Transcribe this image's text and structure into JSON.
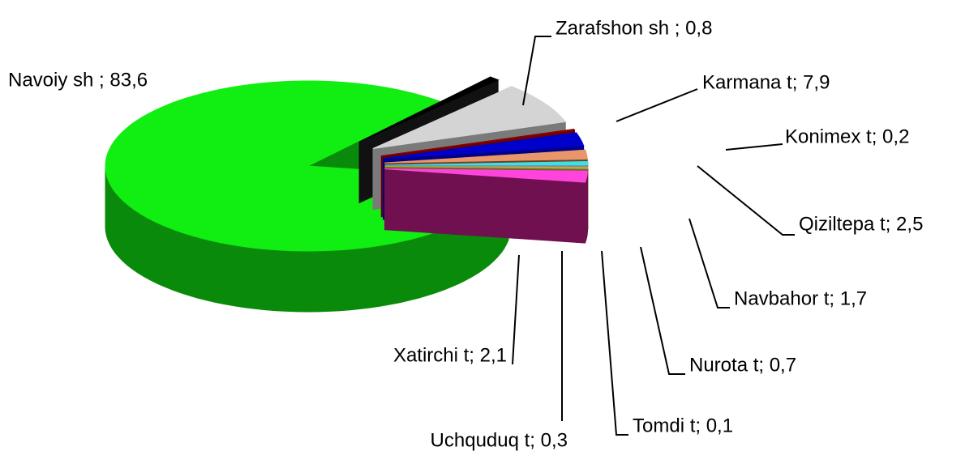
{
  "chart_data": {
    "type": "pie",
    "three_d": true,
    "value_labels": [
      "Navoiy sh ; 83,6",
      "Zarafshon sh ; 0,8",
      "Karmana t; 7,9",
      "Konimex t; 0,2",
      "Qiziltepa t; 2,5",
      "Navbahor t; 1,7",
      "Nurota t; 0,7",
      "Tomdi t; 0,1",
      "Uchquduq t; 0,3",
      "Xatirchi t; 2,1"
    ],
    "values": [
      83.6,
      0.8,
      7.9,
      0.2,
      2.5,
      1.7,
      0.7,
      0.1,
      0.3,
      2.1
    ],
    "colors": [
      "#11ee11",
      "#000000",
      "#d4d4d4",
      "#8b0000",
      "#0000cc",
      "#e8966a",
      "#40e0e0",
      "#9b6bd1",
      "#b0b040",
      "#ff44dd"
    ],
    "side_colors": [
      "#0a8a0a",
      "#111111",
      "#7a7a7a",
      "#6a0000",
      "#000088",
      "#6b4226",
      "#007878",
      "#3a0070",
      "#6b6b20",
      "#701050"
    ]
  }
}
